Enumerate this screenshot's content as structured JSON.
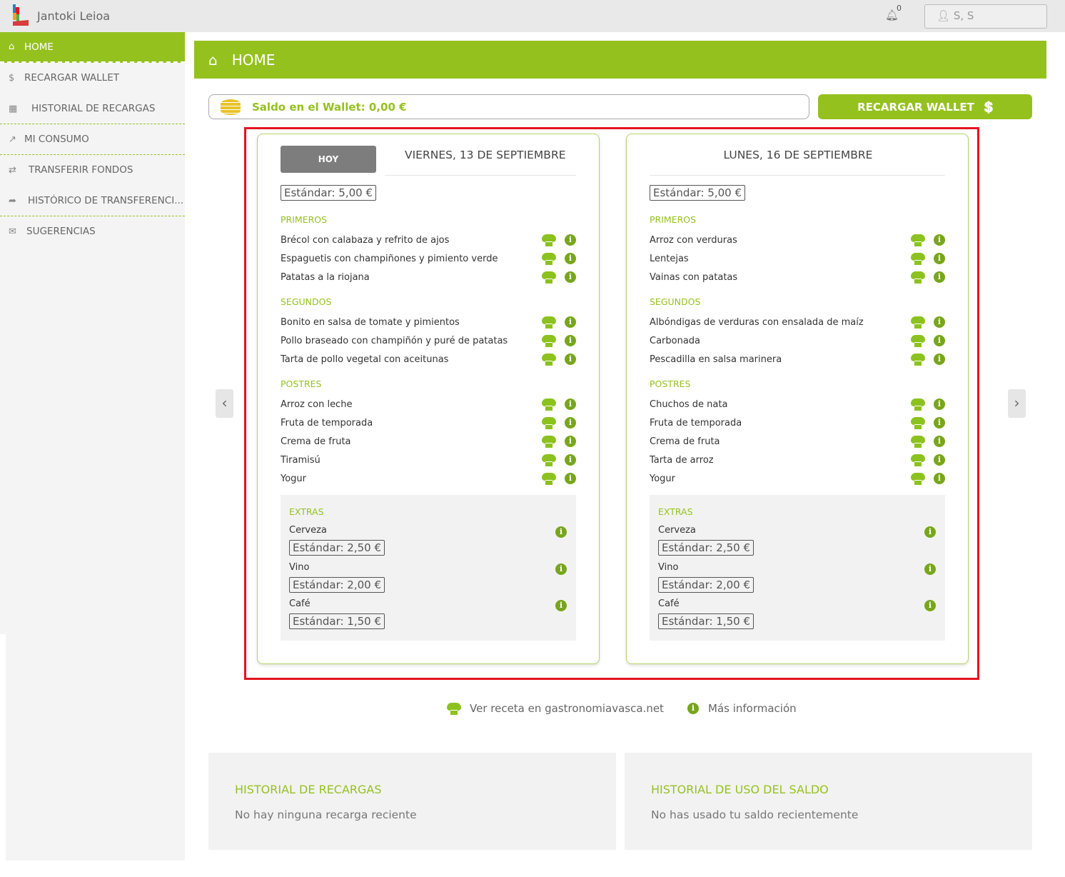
{
  "app": {
    "title": "Jantoki Leioa",
    "notifications": "0",
    "user": "S, S"
  },
  "sidebar": {
    "items": [
      {
        "label": "HOME",
        "icon": "home-icon"
      },
      {
        "label": "RECARGAR WALLET",
        "icon": "wallet-icon"
      },
      {
        "label": "HISTORIAL DE RECARGAS",
        "icon": "history-icon"
      },
      {
        "label": "MI CONSUMO",
        "icon": "chart-icon"
      },
      {
        "label": "TRANSFERIR FONDOS",
        "icon": "transfer-icon"
      },
      {
        "label": "HISTÓRICO DE TRANSFERENCI...",
        "icon": "share-icon"
      },
      {
        "label": "SUGERENCIAS",
        "icon": "mailbox-icon"
      }
    ]
  },
  "header": {
    "title": "HOME"
  },
  "wallet": {
    "balance": "Saldo en el Wallet: 0,00 €",
    "button": "RECARGAR WALLET"
  },
  "menus": [
    {
      "today": "HOY",
      "date": "VIERNES, 13 DE SEPTIEMBRE",
      "price": "Estándar: 5,00 €",
      "sections": [
        {
          "title": "PRIMEROS",
          "items": [
            "Brécol con calabaza y refrito de ajos",
            "Espaguetis con champiñones y pimiento verde",
            "Patatas a la riojana"
          ]
        },
        {
          "title": "SEGUNDOS",
          "items": [
            "Bonito en salsa de tomate y pimientos",
            "Pollo braseado con champiñón y puré de patatas",
            "Tarta de pollo vegetal con aceitunas"
          ]
        },
        {
          "title": "POSTRES",
          "items": [
            "Arroz con leche",
            "Fruta de temporada",
            "Crema de fruta",
            "Tiramisú",
            "Yogur"
          ]
        }
      ],
      "extras": {
        "title": "EXTRAS",
        "items": [
          {
            "name": "Cerveza",
            "price": "Estándar: 2,50 €"
          },
          {
            "name": "Vino",
            "price": "Estándar: 2,00 €"
          },
          {
            "name": "Café",
            "price": "Estándar: 1,50 €"
          }
        ]
      }
    },
    {
      "date": "LUNES, 16 DE SEPTIEMBRE",
      "price": "Estándar: 5,00 €",
      "sections": [
        {
          "title": "PRIMEROS",
          "items": [
            "Arroz con verduras",
            "Lentejas",
            "Vainas con patatas"
          ]
        },
        {
          "title": "SEGUNDOS",
          "items": [
            "Albóndigas de verduras con ensalada de maíz",
            "Carbonada",
            "Pescadilla en salsa marinera"
          ]
        },
        {
          "title": "POSTRES",
          "items": [
            "Chuchos de nata",
            "Fruta de temporada",
            "Crema de fruta",
            "Tarta de arroz",
            "Yogur"
          ]
        }
      ],
      "extras": {
        "title": "EXTRAS",
        "items": [
          {
            "name": "Cerveza",
            "price": "Estándar: 2,50 €"
          },
          {
            "name": "Vino",
            "price": "Estándar: 2,00 €"
          },
          {
            "name": "Café",
            "price": "Estándar: 1,50 €"
          }
        ]
      }
    }
  ],
  "legend": {
    "recipe": "Ver receta en gastronomiavasca.net",
    "info": "Más información"
  },
  "history": {
    "recargas_title": "HISTORIAL DE RECARGAS",
    "recargas_empty": "No hay ninguna recarga reciente",
    "uso_title": "HISTORIAL DE USO DEL SALDO",
    "uso_empty": "No has usado tu saldo recientemente"
  },
  "colors": {
    "accent": "#95c11f",
    "info": "#77a61c",
    "highlight": "#e3141f"
  }
}
